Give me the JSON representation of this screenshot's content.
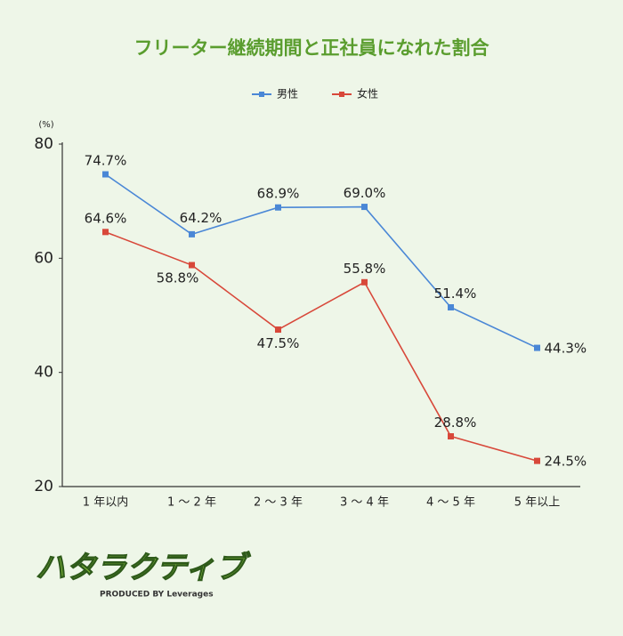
{
  "chart_data": {
    "type": "line",
    "title": "フリーター継続期間と正社員になれた割合",
    "y_unit": "(%)",
    "categories": [
      "1 年以内",
      "1 〜 2 年",
      "2 〜 3 年",
      "3 〜 4 年",
      "4 〜 5 年",
      "5 年以上"
    ],
    "series": [
      {
        "name": "男性",
        "color": "#4a87d6",
        "values": [
          74.7,
          64.2,
          68.9,
          69.0,
          51.4,
          44.3
        ],
        "value_labels": [
          "74.7%",
          "64.2%",
          "68.9%",
          "69.0%",
          "51.4%",
          "44.3%"
        ]
      },
      {
        "name": "女性",
        "color": "#d8483a",
        "values": [
          64.6,
          58.8,
          47.5,
          55.8,
          28.8,
          24.5
        ],
        "value_labels": [
          "64.6%",
          "58.8%",
          "47.5%",
          "55.8%",
          "28.8%",
          "24.5%"
        ]
      }
    ],
    "ylim": [
      20,
      80
    ],
    "yticks": [
      20,
      40,
      60,
      80
    ],
    "grid": false,
    "legend": "top"
  },
  "logo": {
    "name": "ハタラクティブ",
    "tagline": "PRODUCED BY Leverages"
  }
}
